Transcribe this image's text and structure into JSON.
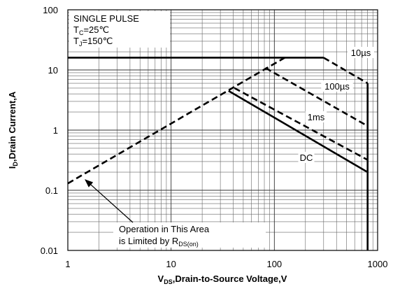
{
  "chart_data": {
    "type": "line",
    "log_x": true,
    "log_y": true,
    "grid": true,
    "minor_grid": true,
    "xlim": [
      1,
      1000
    ],
    "ylim": [
      0.01,
      100
    ],
    "xticks": [
      1,
      10,
      100,
      1000
    ],
    "yticks": [
      0.01,
      0.1,
      1,
      10,
      100
    ],
    "xlabel": {
      "main": "V",
      "sub": "DS",
      "rest": ",Drain-to-Source Voltage,V"
    },
    "ylabel": {
      "main": "I",
      "sub": "D",
      "rest": ",Drain Current,A"
    },
    "info": {
      "line1": "SINGLE PULSE",
      "line2": {
        "main": "T",
        "sub": "C",
        "rest": "=25℃"
      },
      "line3": {
        "main": "T",
        "sub": "J",
        "rest": "=150℃"
      }
    },
    "annotation": {
      "line1": "Operation in This Area",
      "line2": {
        "main": "is Limited by R",
        "sub": "DS(on)"
      }
    },
    "series": [
      {
        "name": "10µs",
        "style": "dashed",
        "color": "#000",
        "x": [
          300,
          800
        ],
        "values": [
          16,
          6
        ]
      },
      {
        "name": "100µs",
        "style": "dashed",
        "color": "#000",
        "x": [
          82,
          800
        ],
        "values": [
          10.8,
          1.17
        ]
      },
      {
        "name": "1ms",
        "style": "dashed",
        "color": "#000",
        "x": [
          41,
          800
        ],
        "values": [
          5,
          0.32
        ]
      },
      {
        "name": "DC",
        "style": "solid",
        "color": "#000",
        "x": [
          36,
          800
        ],
        "values": [
          4.5,
          0.2
        ]
      },
      {
        "style": "solid",
        "color": "#000",
        "x": [
          1,
          300
        ],
        "values": [
          16,
          16
        ]
      },
      {
        "style": "solid",
        "color": "#000",
        "x": [
          800,
          800
        ],
        "values": [
          6,
          0.01
        ]
      },
      {
        "style": "dashed",
        "color": "#000",
        "x": [
          1,
          126
        ],
        "values": [
          0.13,
          16
        ]
      }
    ]
  }
}
